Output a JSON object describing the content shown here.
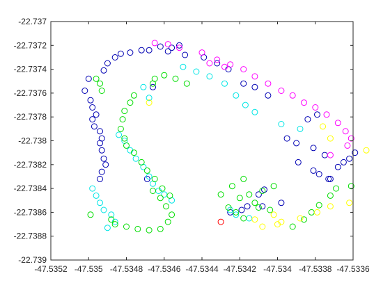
{
  "chart_data": {
    "type": "scatter",
    "title": "",
    "xlabel": "",
    "ylabel": "",
    "xlim": [
      -47.5352,
      -47.5336
    ],
    "ylim": [
      -22.739,
      -22.737
    ],
    "x_ticks": [
      -47.5352,
      -47.535,
      -47.5348,
      -47.5346,
      -47.5344,
      -47.5342,
      -47.534,
      -47.5338,
      -47.5336
    ],
    "x_tick_labels": [
      "-47.5352",
      "-47.535",
      "-47.5348",
      "-47.5346",
      "-47.5344",
      "-47.5342",
      "-47.534",
      "-47.5338",
      "-47.5336"
    ],
    "y_ticks": [
      -22.737,
      -22.7372,
      -22.7374,
      -22.7376,
      -22.7378,
      -22.738,
      -22.7382,
      -22.7384,
      -22.7386,
      -22.7388,
      -22.739
    ],
    "y_tick_labels": [
      "-22.737",
      "-22.7372",
      "-22.7374",
      "-22.7376",
      "-22.7378",
      "-22.738",
      "-22.7382",
      "-22.7384",
      "-22.7386",
      "-22.7388",
      "-22.739"
    ],
    "grid": false,
    "marker": "open-circle",
    "colors": {
      "blue": "#0000b3",
      "cyan": "#00e5e5",
      "green": "#00dd00",
      "yellow": "#ffff00",
      "magenta": "#ff00ff",
      "red": "#ff0000"
    },
    "series": [
      {
        "color": "#0000b3",
        "x": [
          -47.535,
          -47.53502,
          -47.53499,
          -47.53498,
          -47.53496,
          -47.53498,
          -47.53497,
          -47.53494,
          -47.53493,
          -47.53494,
          -47.53493,
          -47.53492,
          -47.53491,
          -47.53493,
          -47.53494,
          -47.5349,
          -47.53492,
          -47.53486,
          -47.53483,
          -47.53478,
          -47.53472,
          -47.53468,
          -47.53462,
          -47.53452,
          -47.53456,
          -47.53458,
          -47.53449,
          -47.53439,
          -47.53432,
          -47.53426,
          -47.53418,
          -47.53412,
          -47.53405,
          -47.53395,
          -47.5339,
          -47.53381,
          -47.53375,
          -47.53389,
          -47.53381,
          -47.53378,
          -47.53373,
          -47.53398,
          -47.53408,
          -47.53416,
          -47.53419,
          -47.53425,
          -47.53372,
          -47.53368,
          -47.53365,
          -47.53362,
          -47.53359,
          -47.53379,
          -47.53384,
          -47.53407,
          -47.5341,
          -47.53469,
          -47.53466
        ],
        "y": [
          -22.73748,
          -22.73758,
          -22.73766,
          -22.73772,
          -22.73778,
          -22.73782,
          -22.73788,
          -22.73792,
          -22.73798,
          -22.73802,
          -22.73808,
          -22.73815,
          -22.7382,
          -22.73826,
          -22.73832,
          -22.73735,
          -22.73741,
          -22.7373,
          -22.73727,
          -22.73726,
          -22.73724,
          -22.73724,
          -22.73721,
          -22.7372,
          -22.73722,
          -22.73725,
          -22.73728,
          -22.7373,
          -22.73735,
          -22.7374,
          -22.73752,
          -22.73755,
          -22.73762,
          -22.73798,
          -22.73802,
          -22.73806,
          -22.73812,
          -22.73818,
          -22.73825,
          -22.73828,
          -22.73832,
          -22.73852,
          -22.73855,
          -22.73855,
          -22.73858,
          -22.7386,
          -22.73832,
          -22.73822,
          -22.73818,
          -22.73815,
          -22.7381,
          -22.73778,
          -22.73782,
          -22.73841,
          -22.73845,
          -22.73832,
          -22.73755
        ]
      },
      {
        "color": "#00e5e5",
        "x": [
          -47.53498,
          -47.53496,
          -47.53494,
          -47.53492,
          -47.53488,
          -47.53486,
          -47.5349,
          -47.53484,
          -47.53481,
          -47.53478,
          -47.53475,
          -47.53471,
          -47.53468,
          -47.53466,
          -47.53463,
          -47.5346,
          -47.53456,
          -47.5345,
          -47.53443,
          -47.53436,
          -47.53428,
          -47.53422,
          -47.53417,
          -47.53412,
          -47.53398,
          -47.53388,
          -47.53425,
          -47.53422,
          -47.53415,
          -47.53471,
          -47.53468
        ],
        "y": [
          -22.7384,
          -22.73846,
          -22.73852,
          -22.73858,
          -22.73862,
          -22.73868,
          -22.73873,
          -22.73795,
          -22.738,
          -22.73808,
          -22.73815,
          -22.73822,
          -22.7383,
          -22.73836,
          -22.73842,
          -22.73845,
          -22.7385,
          -22.73738,
          -22.73742,
          -22.73746,
          -22.73752,
          -22.73762,
          -22.7377,
          -22.73776,
          -22.73786,
          -22.7379,
          -22.73858,
          -22.73862,
          -22.73865,
          -22.73755,
          -22.73764
        ]
      },
      {
        "color": "#00dd00",
        "x": [
          -47.53496,
          -47.53494,
          -47.53493,
          -47.53499,
          -47.53488,
          -47.53486,
          -47.5348,
          -47.53474,
          -47.53468,
          -47.53462,
          -47.53458,
          -47.53456,
          -47.53459,
          -47.53462,
          -47.53466,
          -47.53476,
          -47.53478,
          -47.53481,
          -47.53482,
          -47.53483,
          -47.53481,
          -47.5348,
          -47.53476,
          -47.53472,
          -47.53469,
          -47.53465,
          -47.53461,
          -47.53457,
          -47.5343,
          -47.53424,
          -47.53418,
          -47.53412,
          -47.5341,
          -47.53404,
          -47.53392,
          -47.53386,
          -47.53382,
          -47.53378,
          -47.53372,
          -47.53369,
          -47.53361,
          -47.53418,
          -47.53422,
          -47.53426,
          -47.5342,
          -47.53415,
          -47.53408,
          -47.53402,
          -47.53465,
          -47.53466,
          -47.5346,
          -47.53454,
          -47.53448
        ],
        "y": [
          -22.73748,
          -22.73752,
          -22.73758,
          -22.73862,
          -22.73866,
          -22.7387,
          -22.73872,
          -22.73874,
          -22.73875,
          -22.73874,
          -22.73868,
          -22.73862,
          -22.73855,
          -22.73848,
          -22.73842,
          -22.73762,
          -22.73768,
          -22.73775,
          -22.73782,
          -22.7379,
          -22.73798,
          -22.73804,
          -22.7381,
          -22.73818,
          -22.73825,
          -22.73832,
          -22.7384,
          -22.73846,
          -22.73845,
          -22.73838,
          -22.73832,
          -22.73852,
          -22.73856,
          -22.73858,
          -22.73872,
          -22.73866,
          -22.7386,
          -22.73854,
          -22.73846,
          -22.7384,
          -22.73838,
          -22.73865,
          -22.7386,
          -22.73856,
          -22.73848,
          -22.73845,
          -22.73842,
          -22.73838,
          -22.73748,
          -22.73752,
          -22.73745,
          -22.73748,
          -22.73752
        ]
      },
      {
        "color": "#ffff00",
        "x": [
          -47.53408,
          -47.534,
          -47.53398,
          -47.53388,
          -47.53379,
          -47.53372,
          -47.53362,
          -47.53353,
          -47.53372,
          -47.53376,
          -47.53402,
          -47.53468,
          -47.53412
        ],
        "y": [
          -22.73872,
          -22.7387,
          -22.73868,
          -22.73865,
          -22.7386,
          -22.73855,
          -22.73852,
          -22.73808,
          -22.73798,
          -22.73788,
          -22.73862,
          -22.73768,
          -22.73866
        ]
      },
      {
        "color": "#ff00ff",
        "x": [
          -47.53465,
          -47.53458,
          -47.53452,
          -47.5344,
          -47.53432,
          -47.53425,
          -47.53418,
          -47.53412,
          -47.53405,
          -47.53398,
          -47.53392,
          -47.53386,
          -47.5338,
          -47.53374,
          -47.53368,
          -47.53364,
          -47.53361,
          -47.53363,
          -47.53428,
          -47.53436,
          -47.53372
        ],
        "y": [
          -22.73718,
          -22.73719,
          -22.73722,
          -22.73726,
          -22.73732,
          -22.73736,
          -22.7374,
          -22.73746,
          -22.73752,
          -22.73758,
          -22.73762,
          -22.73768,
          -22.73772,
          -22.73778,
          -22.73785,
          -22.73792,
          -22.73798,
          -22.73804,
          -22.73738,
          -22.73735,
          -22.73812
        ]
      },
      {
        "color": "#ff0000",
        "x": [
          -47.5343
        ],
        "y": [
          -22.73868
        ]
      }
    ]
  }
}
